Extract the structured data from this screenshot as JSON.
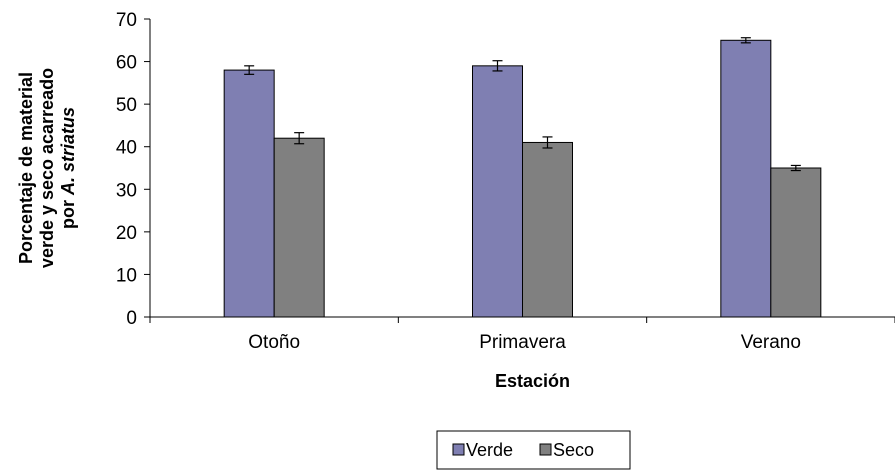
{
  "chart_data": {
    "type": "bar",
    "categories": [
      "Otoño",
      "Primavera",
      "Verano"
    ],
    "series": [
      {
        "name": "Verde",
        "values": [
          58,
          59,
          65
        ],
        "errors": [
          1.0,
          1.2,
          0.6
        ],
        "color": "#7f7fb2"
      },
      {
        "name": "Seco",
        "values": [
          42,
          41,
          35
        ],
        "errors": [
          1.3,
          1.3,
          0.6
        ],
        "color": "#808080"
      }
    ],
    "xlabel": "Estación",
    "ylabel_lines": [
      "Porcentaje de material",
      "verde  y seco acarreado",
      "por A. striatus"
    ],
    "ylabel_italic": "A. striatus",
    "ylim": [
      0,
      70
    ],
    "yticks": [
      0,
      10,
      20,
      30,
      40,
      50,
      60,
      70
    ],
    "grid": false,
    "legend_position": "bottom-center"
  }
}
